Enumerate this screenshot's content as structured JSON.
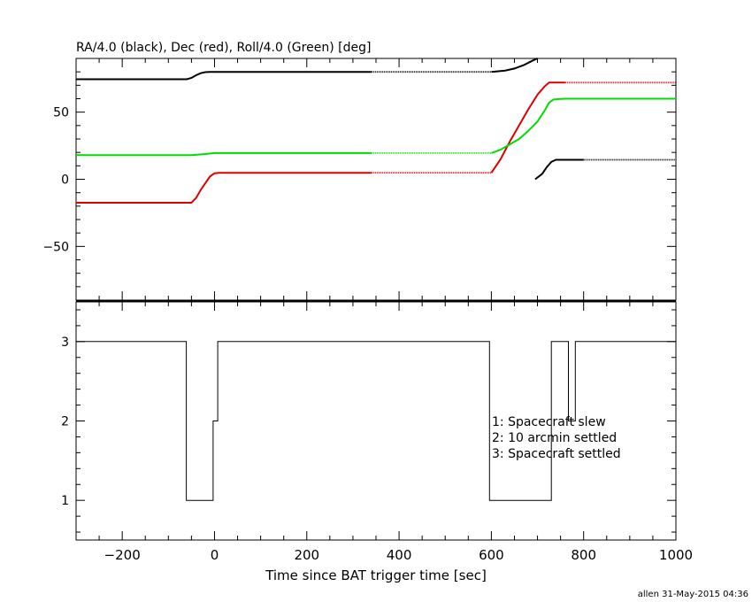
{
  "chart_data": [
    {
      "type": "line",
      "title": "RA/4.0 (black), Dec (red), Roll/4.0 (Green) [deg]",
      "xlim": [
        -300,
        1000
      ],
      "ylim": [
        -90,
        90
      ],
      "yticks": [
        -50,
        0,
        50
      ],
      "yticklabels": [
        "−50",
        "0",
        "50"
      ],
      "grid": false,
      "series": [
        {
          "color": "#000000",
          "segments": [
            {
              "x": [
                -300,
                -60,
                -50,
                -40,
                -30,
                -20,
                -10,
                0,
                340
              ],
              "y": [
                74.5,
                74.5,
                75.5,
                77.5,
                79,
                79.8,
                80,
                80,
                80
              ],
              "dotted": false
            },
            {
              "x": [
                340,
                600
              ],
              "y": [
                80,
                80
              ],
              "dotted": true
            },
            {
              "x": [
                600,
                630,
                650,
                670,
                690,
                700
              ],
              "y": [
                80,
                81,
                82.5,
                85,
                88.5,
                90
              ],
              "dotted": false
            },
            {
              "x": [
                695,
                710,
                720,
                730,
                740,
                800
              ],
              "y": [
                0,
                4,
                9,
                13,
                14.5,
                14.5
              ],
              "dotted": false
            },
            {
              "x": [
                800,
                1000
              ],
              "y": [
                14.5,
                14.5
              ],
              "dotted": true
            }
          ]
        },
        {
          "color": "#dd0000",
          "segments": [
            {
              "x": [
                -300,
                -50,
                -40,
                -30,
                -20,
                -10,
                0,
                10,
                340
              ],
              "y": [
                -17.5,
                -17.5,
                -14,
                -8,
                -3,
                2,
                4.5,
                4.8,
                4.8
              ],
              "dotted": false
            },
            {
              "x": [
                340,
                600
              ],
              "y": [
                4.8,
                4.8
              ],
              "dotted": true
            },
            {
              "x": [
                600,
                620,
                640,
                660,
                680,
                700,
                715,
                725,
                760
              ],
              "y": [
                4.8,
                15,
                28,
                40,
                52,
                63,
                69,
                72,
                72
              ],
              "dotted": false
            },
            {
              "x": [
                760,
                1000
              ],
              "y": [
                72,
                72
              ],
              "dotted": true
            }
          ]
        },
        {
          "color": "#00dd00",
          "segments": [
            {
              "x": [
                -300,
                -50,
                -20,
                0,
                340
              ],
              "y": [
                18,
                18,
                18.8,
                19.5,
                19.5
              ],
              "dotted": false
            },
            {
              "x": [
                340,
                600
              ],
              "y": [
                19.5,
                19.5
              ],
              "dotted": true
            },
            {
              "x": [
                600,
                620,
                640,
                660,
                680,
                700,
                715,
                725,
                735,
                760,
                1000
              ],
              "y": [
                19.5,
                22,
                26,
                30,
                36,
                43,
                51,
                57,
                59.5,
                60,
                60
              ],
              "dotted": false
            }
          ]
        }
      ]
    },
    {
      "type": "line",
      "xlabel": "Time since BAT trigger time [sec]",
      "xlim": [
        -300,
        1000
      ],
      "ylim": [
        0.5,
        3.5
      ],
      "xticks": [
        -200,
        0,
        200,
        400,
        600,
        800,
        1000
      ],
      "xticklabels": [
        "−200",
        "0",
        "200",
        "400",
        "600",
        "800",
        "1000"
      ],
      "yticks": [
        1,
        2,
        3
      ],
      "yticklabels": [
        "1",
        "2",
        "3"
      ],
      "grid": false,
      "step": {
        "x": [
          -300,
          -61,
          -61,
          -3,
          -3,
          7,
          7,
          596,
          596,
          730,
          730,
          767,
          767,
          782,
          782,
          797,
          797,
          1000
        ],
        "y": [
          3,
          3,
          1,
          1,
          2,
          2,
          3,
          3,
          1,
          1,
          3,
          3,
          2,
          2,
          3,
          3,
          3,
          3
        ]
      },
      "legend_lines": [
        "1: Spacecraft slew",
        "2: 10 arcmin settled",
        "3: Spacecraft settled"
      ]
    }
  ],
  "footer": "allen 31-May-2015 04:36"
}
